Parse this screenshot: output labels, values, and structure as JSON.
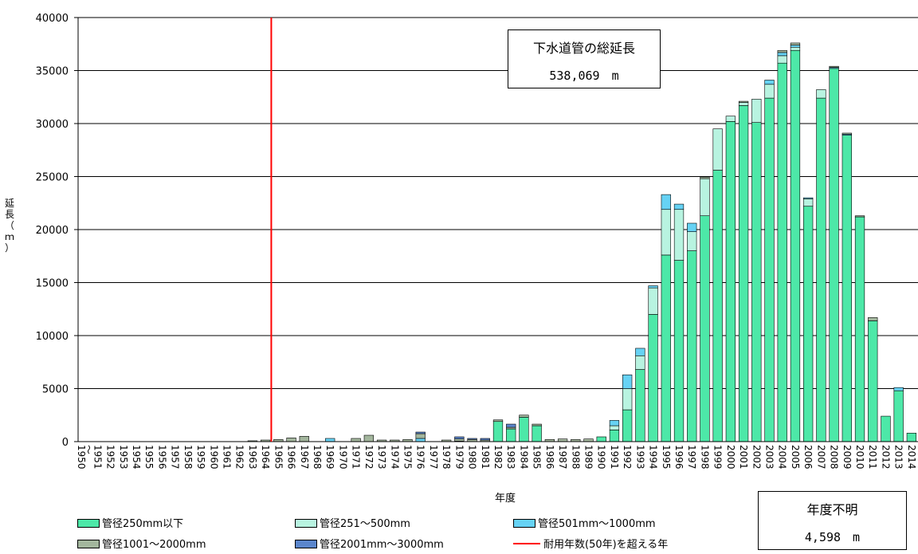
{
  "chart_data": {
    "type": "bar",
    "stacked": true,
    "title": "",
    "xlabel": "年度",
    "ylabel": "延長（ｍ）",
    "ylim": [
      0,
      40000
    ],
    "yticks": [
      0,
      5000,
      10000,
      15000,
      20000,
      25000,
      30000,
      35000,
      40000
    ],
    "grid": true,
    "legend_position": "bottom",
    "categories": [
      "～\n1950",
      "1951",
      "1952",
      "1953",
      "1954",
      "1955",
      "1956",
      "1957",
      "1958",
      "1959",
      "1960",
      "1961",
      "1962",
      "1963",
      "1964",
      "1965",
      "1966",
      "1967",
      "1968",
      "1969",
      "1970",
      "1971",
      "1972",
      "1973",
      "1974",
      "1975",
      "1976",
      "1977",
      "1978",
      "1979",
      "1980",
      "1981",
      "1982",
      "1983",
      "1984",
      "1985",
      "1986",
      "1987",
      "1988",
      "1989",
      "1990",
      "1991",
      "1992",
      "1993",
      "1994",
      "1995",
      "1996",
      "1997",
      "1998",
      "1999",
      "2000",
      "2001",
      "2002",
      "2003",
      "2004",
      "2005",
      "2006",
      "2007",
      "2008",
      "2009",
      "2010",
      "2011",
      "2012",
      "2013",
      "2014"
    ],
    "series": [
      {
        "name": "管径250mm以下",
        "color": "#4de8a8",
        "values": [
          0,
          0,
          0,
          0,
          0,
          0,
          0,
          0,
          0,
          0,
          0,
          0,
          0,
          0,
          0,
          0,
          0,
          0,
          0,
          0,
          0,
          0,
          0,
          0,
          0,
          0,
          0,
          0,
          0,
          50,
          0,
          0,
          1900,
          1200,
          2300,
          1500,
          0,
          0,
          0,
          0,
          450,
          1100,
          3000,
          6800,
          12000,
          17600,
          17100,
          18000,
          21300,
          25600,
          30200,
          31700,
          30100,
          32400,
          35700,
          36900,
          22200,
          32400,
          35200,
          28900,
          21200,
          11400,
          2400,
          4800,
          800
        ]
      },
      {
        "name": "管径251～500mm",
        "color": "#b8f3e0",
        "values": [
          0,
          0,
          0,
          0,
          0,
          0,
          0,
          0,
          0,
          0,
          0,
          0,
          0,
          0,
          0,
          0,
          0,
          0,
          0,
          0,
          0,
          0,
          0,
          0,
          0,
          0,
          0,
          0,
          0,
          0,
          0,
          0,
          0,
          0,
          0,
          0,
          0,
          0,
          0,
          0,
          0,
          400,
          2000,
          1300,
          2500,
          4300,
          4800,
          1800,
          3500,
          3900,
          500,
          300,
          2200,
          1300,
          700,
          300,
          700,
          800,
          0,
          0,
          0,
          0,
          0,
          0,
          0
        ]
      },
      {
        "name": "管径501mm～1000mm",
        "color": "#66d2f4",
        "values": [
          0,
          0,
          0,
          0,
          0,
          0,
          0,
          0,
          0,
          0,
          0,
          0,
          0,
          0,
          0,
          0,
          0,
          0,
          0,
          300,
          0,
          0,
          0,
          0,
          0,
          0,
          300,
          0,
          0,
          0,
          0,
          0,
          0,
          0,
          0,
          0,
          0,
          0,
          0,
          0,
          0,
          500,
          1300,
          700,
          200,
          1400,
          500,
          800,
          0,
          0,
          0,
          0,
          0,
          400,
          300,
          200,
          100,
          0,
          100,
          100,
          0,
          0,
          0,
          300,
          0
        ]
      },
      {
        "name": "管径1001～2000mm",
        "color": "#a3b69d",
        "values": [
          0,
          0,
          0,
          0,
          0,
          0,
          0,
          0,
          0,
          0,
          0,
          0,
          0,
          80,
          150,
          200,
          350,
          500,
          0,
          0,
          0,
          300,
          600,
          150,
          150,
          200,
          450,
          0,
          150,
          200,
          200,
          150,
          150,
          150,
          200,
          150,
          200,
          250,
          200,
          250,
          0,
          0,
          0,
          0,
          0,
          0,
          0,
          0,
          150,
          0,
          0,
          100,
          0,
          0,
          200,
          200,
          0,
          0,
          100,
          100,
          100,
          300,
          0,
          0,
          0
        ]
      },
      {
        "name": "管径2001mm～3000mm",
        "color": "#5b86cc",
        "values": [
          0,
          0,
          0,
          0,
          0,
          0,
          0,
          0,
          0,
          0,
          0,
          0,
          0,
          0,
          0,
          0,
          0,
          0,
          0,
          0,
          0,
          0,
          0,
          0,
          0,
          0,
          150,
          0,
          0,
          200,
          100,
          150,
          0,
          300,
          0,
          0,
          0,
          0,
          0,
          0,
          0,
          0,
          0,
          0,
          0,
          0,
          0,
          0,
          0,
          0,
          0,
          0,
          0,
          0,
          0,
          0,
          0,
          0,
          0,
          0,
          0,
          0,
          0,
          0,
          0
        ]
      }
    ],
    "reference_line": {
      "name": "耐用年数(50年)を超える年",
      "color": "#ff0000",
      "at_category": "1964"
    },
    "annotations": [
      {
        "label": "下水道管の総延長",
        "value": "538,069　m"
      },
      {
        "label": "年度不明",
        "value": "4,598　m"
      }
    ]
  }
}
